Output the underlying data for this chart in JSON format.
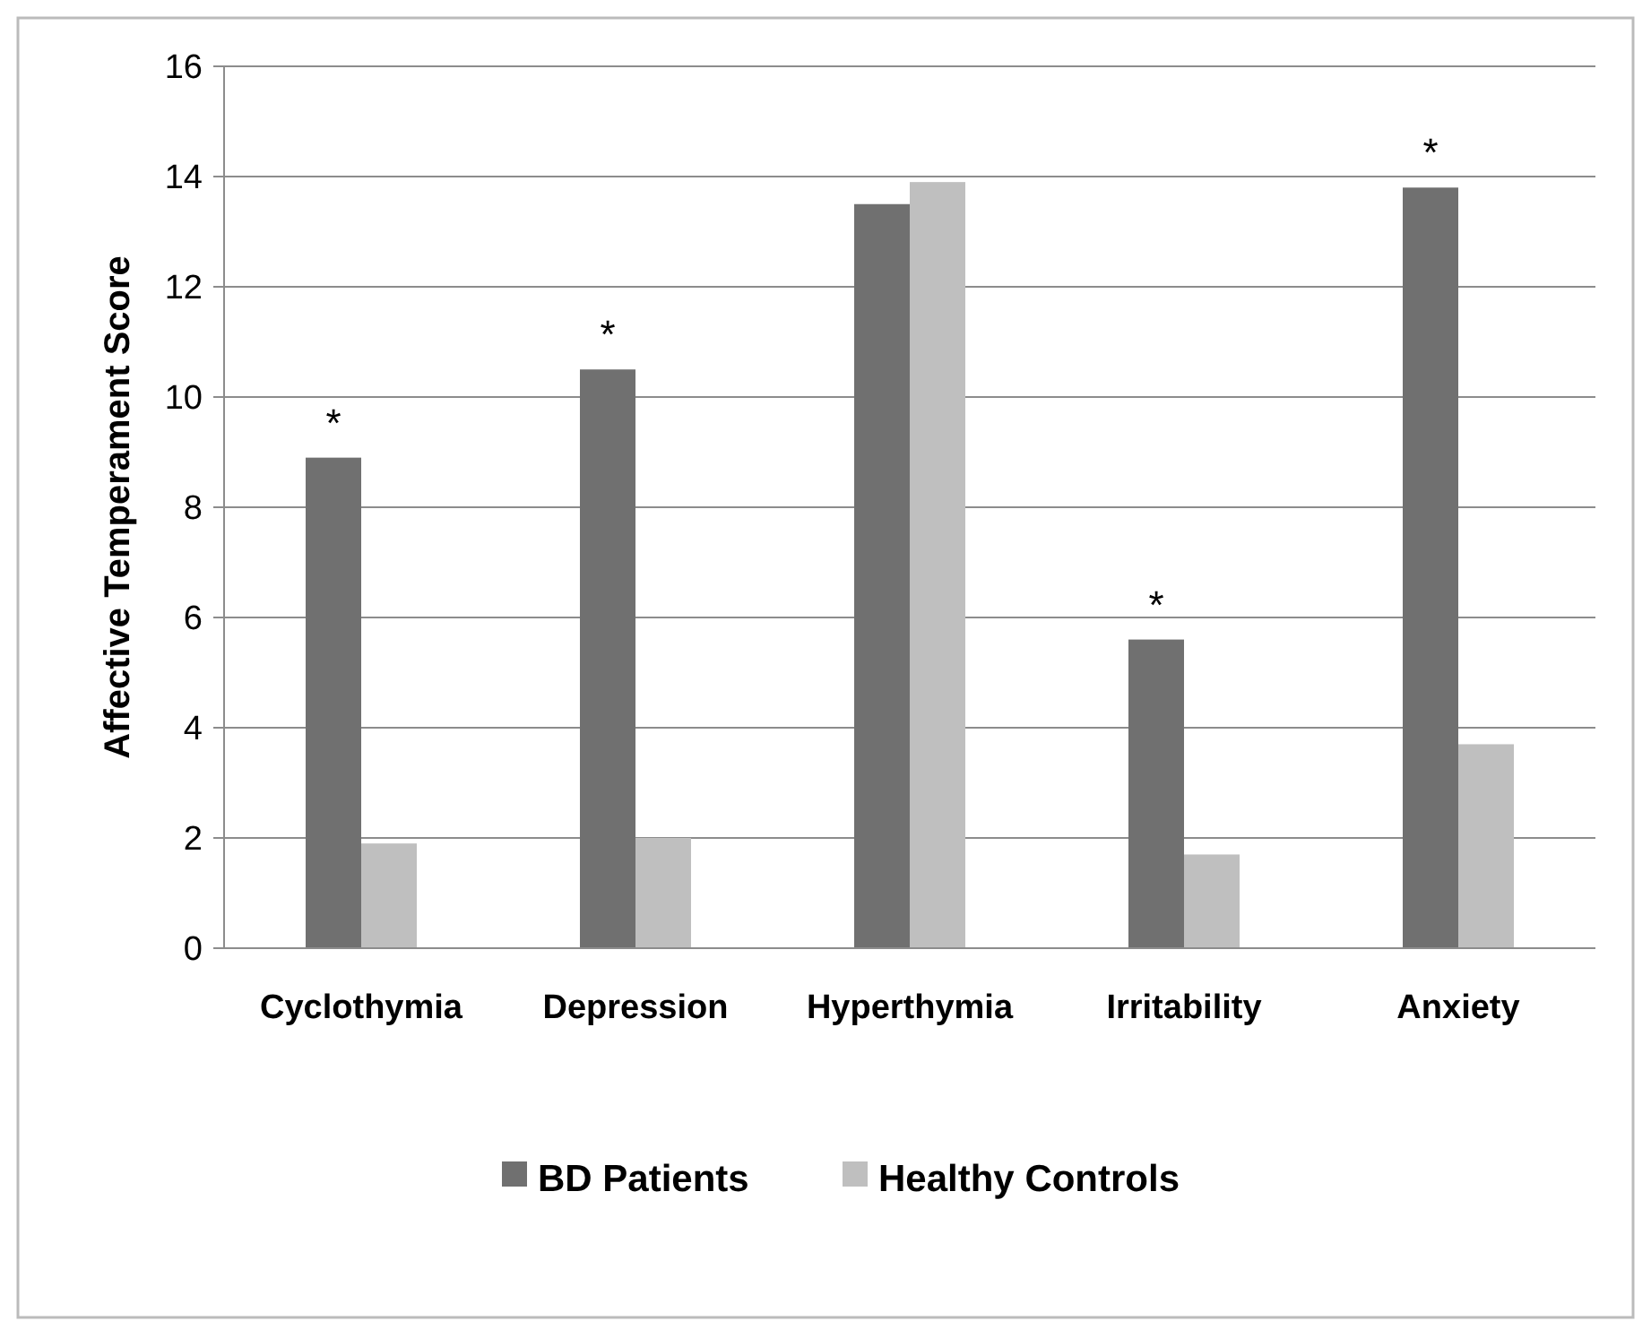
{
  "chart_data": {
    "type": "bar",
    "ylabel": "Affective Temperament Score",
    "categories": [
      "Cyclothymia",
      "Depression",
      "Hyperthymia",
      "Irritability",
      "Anxiety"
    ],
    "series": [
      {
        "name": "BD Patients",
        "color": "#707070",
        "values": [
          8.9,
          10.5,
          13.5,
          5.6,
          13.8
        ]
      },
      {
        "name": "Healthy Controls",
        "color": "#bfbfbf",
        "values": [
          1.9,
          2.0,
          13.9,
          1.7,
          3.7
        ]
      }
    ],
    "ylim": [
      0,
      16
    ],
    "yticks": [
      0,
      2,
      4,
      6,
      8,
      10,
      12,
      14,
      16
    ],
    "grid": "y",
    "legend": "bottom",
    "annotations": [
      {
        "text": "*",
        "x": "Cyclothymia",
        "y": 8.9
      },
      {
        "text": "*",
        "x": "Depression",
        "y": 10.5
      },
      {
        "text": "*",
        "x": "Irritability",
        "y": 5.6
      },
      {
        "text": "*",
        "x": "Anxiety",
        "y": 13.8
      }
    ]
  }
}
